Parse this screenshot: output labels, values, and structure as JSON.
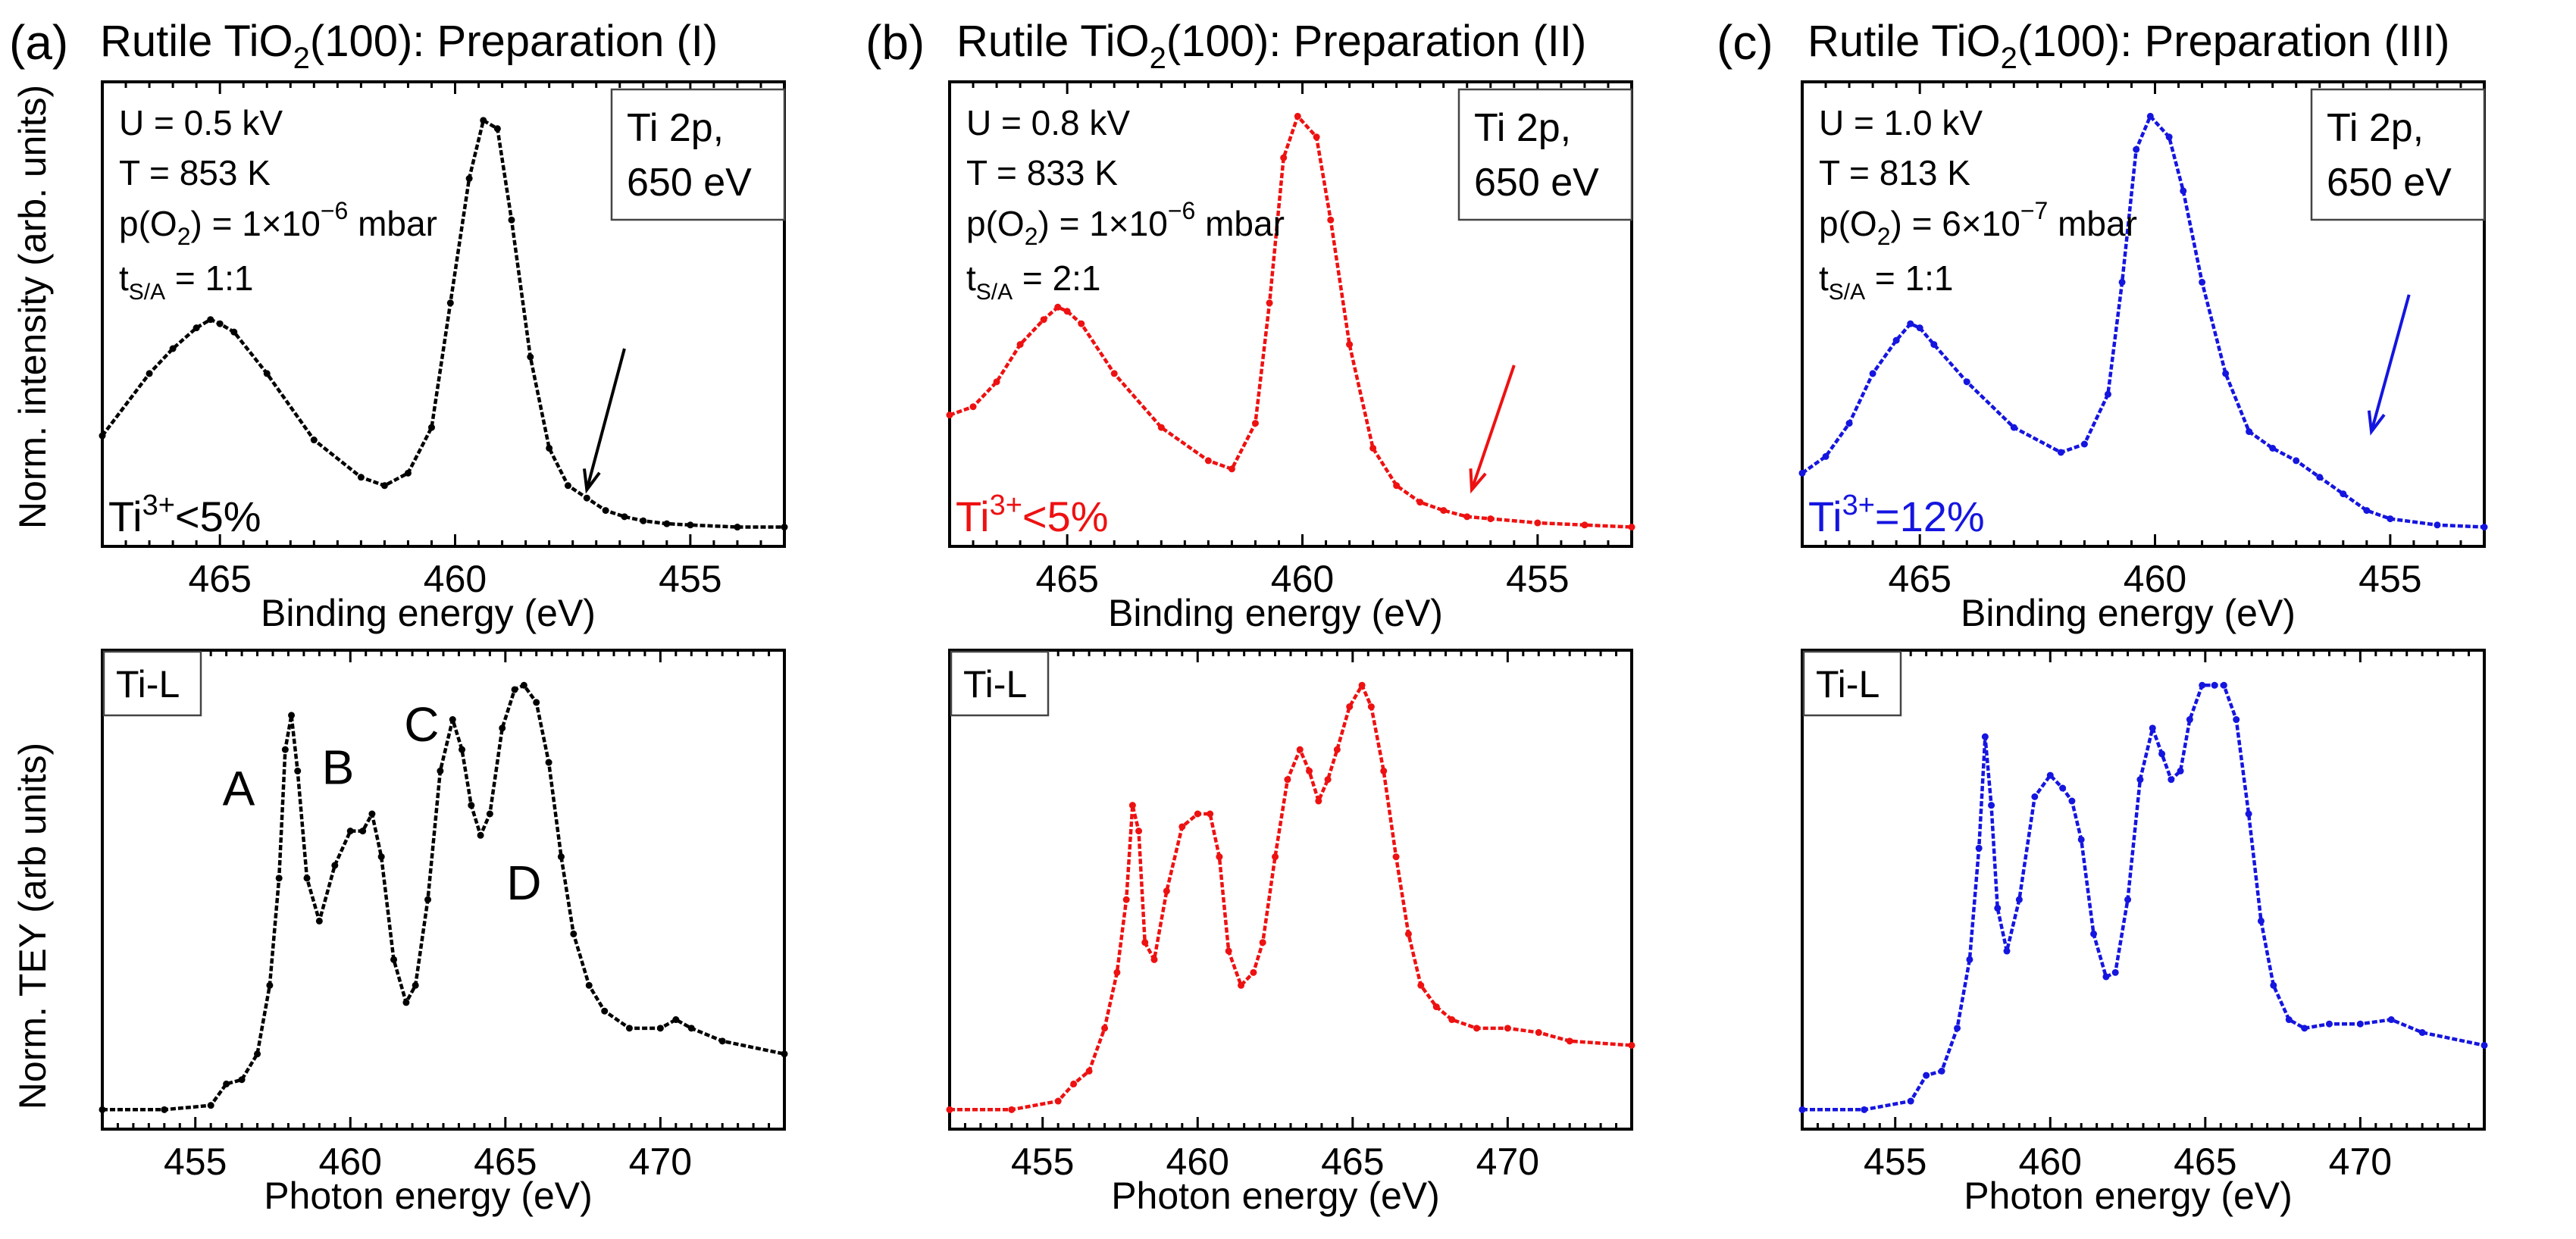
{
  "figure": {
    "panels": [
      {
        "letter": "(a)",
        "title_pre": "Rutile TiO",
        "title_sub": "2",
        "title_post": "(100): Preparation (I)",
        "color": "#000000"
      },
      {
        "letter": "(b)",
        "title_pre": "Rutile TiO",
        "title_sub": "2",
        "title_post": "(100): Preparation (II)",
        "color": "#ee1111"
      },
      {
        "letter": "(c)",
        "title_pre": "Rutile TiO",
        "title_sub": "2",
        "title_post": "(100): Preparation (III)",
        "color": "#1515e0"
      }
    ],
    "ylabel_top": "Norm. intensity (arb. units)",
    "ylabel_bottom": "Norm. TEY (arb units)"
  },
  "chart_data": [
    {
      "type": "line",
      "panel": "a",
      "row": "xps",
      "xlabel": "Binding energy (eV)",
      "xlim": [
        467.5,
        453
      ],
      "x_reversed": true,
      "xticks": [
        465,
        460,
        455
      ],
      "ylim": [
        0,
        1.05
      ],
      "inset_label": [
        "Ti 2p,",
        "650 eV"
      ],
      "params": {
        "U": "U = 0.5 kV",
        "T": "T = 853 K",
        "p_pre": "p(O",
        "p_sub": "2",
        "p_mid": ") = 1×10",
        "p_exp": "−6",
        "p_unit": " mbar",
        "t_pre": "t",
        "t_sub": "S/A",
        "t_post": " = 1:1"
      },
      "ti3_pre": "Ti",
      "ti3_sup": "3+",
      "ti3_post": "<5%",
      "arrow": {
        "from": [
          456.4,
          0.44
        ],
        "to": [
          457.2,
          0.1
        ]
      },
      "x": [
        467.5,
        466.5,
        466,
        465.5,
        465.2,
        465,
        464.7,
        464,
        463,
        462,
        461.5,
        461,
        460.5,
        460.1,
        459.7,
        459.4,
        459.1,
        458.8,
        458.4,
        458,
        457.6,
        457.2,
        456.8,
        456.4,
        456,
        455.5,
        455,
        454,
        453
      ],
      "y": [
        0.23,
        0.38,
        0.44,
        0.49,
        0.51,
        0.5,
        0.48,
        0.38,
        0.22,
        0.13,
        0.11,
        0.14,
        0.25,
        0.55,
        0.85,
        0.99,
        0.97,
        0.75,
        0.42,
        0.2,
        0.11,
        0.08,
        0.05,
        0.035,
        0.025,
        0.018,
        0.015,
        0.01,
        0.01
      ]
    },
    {
      "type": "line",
      "panel": "b",
      "row": "xps",
      "xlabel": "Binding energy (eV)",
      "xlim": [
        467.5,
        453
      ],
      "x_reversed": true,
      "xticks": [
        465,
        460,
        455
      ],
      "ylim": [
        0,
        1.05
      ],
      "inset_label": [
        "Ti 2p,",
        "650 eV"
      ],
      "params": {
        "U": "U = 0.8 kV",
        "T": "T = 833 K",
        "p_pre": "p(O",
        "p_sub": "2",
        "p_mid": ") = 1×10",
        "p_exp": "−6",
        "p_unit": " mbar",
        "t_pre": "t",
        "t_sub": "S/A",
        "t_post": " = 2:1"
      },
      "ti3_pre": "Ti",
      "ti3_sup": "3+",
      "ti3_post": "<5%",
      "arrow": {
        "from": [
          455.5,
          0.4
        ],
        "to": [
          456.4,
          0.1
        ]
      },
      "x": [
        467.5,
        467,
        466.5,
        466,
        465.5,
        465.2,
        465,
        464.7,
        464,
        463,
        462,
        461.5,
        461,
        460.7,
        460.4,
        460.1,
        459.7,
        459.4,
        459,
        458.5,
        458,
        457.5,
        457,
        456.5,
        456,
        455,
        454,
        453
      ],
      "y": [
        0.28,
        0.3,
        0.36,
        0.45,
        0.51,
        0.54,
        0.53,
        0.5,
        0.38,
        0.25,
        0.17,
        0.15,
        0.26,
        0.55,
        0.9,
        1.0,
        0.95,
        0.75,
        0.45,
        0.2,
        0.11,
        0.07,
        0.05,
        0.035,
        0.03,
        0.02,
        0.015,
        0.01
      ]
    },
    {
      "type": "line",
      "panel": "c",
      "row": "xps",
      "xlabel": "Binding energy (eV)",
      "xlim": [
        467.5,
        453
      ],
      "x_reversed": true,
      "xticks": [
        465,
        460,
        455
      ],
      "ylim": [
        0,
        1.05
      ],
      "inset_label": [
        "Ti 2p,",
        "650 eV"
      ],
      "params": {
        "U": "U = 1.0 kV",
        "T": "T = 813 K",
        "p_pre": "p(O",
        "p_sub": "2",
        "p_mid": ") = 6×10",
        "p_exp": "−7",
        "p_unit": " mbar",
        "t_pre": "t",
        "t_sub": "S/A",
        "t_post": " = 1:1"
      },
      "ti3_pre": "Ti",
      "ti3_sup": "3+",
      "ti3_post": "=12%",
      "arrow": {
        "from": [
          454.6,
          0.57
        ],
        "to": [
          455.4,
          0.24
        ]
      },
      "x": [
        467.5,
        467,
        466.5,
        466,
        465.5,
        465.2,
        465,
        464.7,
        464,
        463,
        462,
        461.5,
        461,
        460.7,
        460.4,
        460.1,
        459.7,
        459.4,
        459,
        458.5,
        458,
        457.5,
        457,
        456.5,
        456,
        455.5,
        455,
        454,
        453
      ],
      "y": [
        0.14,
        0.18,
        0.26,
        0.38,
        0.46,
        0.5,
        0.49,
        0.45,
        0.36,
        0.25,
        0.19,
        0.21,
        0.33,
        0.6,
        0.92,
        1.0,
        0.95,
        0.82,
        0.6,
        0.38,
        0.24,
        0.2,
        0.17,
        0.13,
        0.09,
        0.05,
        0.03,
        0.015,
        0.01
      ]
    },
    {
      "type": "line",
      "panel": "a",
      "row": "tey",
      "xlabel": "Photon energy (eV)",
      "xlim": [
        452,
        474
      ],
      "xticks": [
        455,
        460,
        465,
        470
      ],
      "ylim": [
        0,
        1.05
      ],
      "inset_label": [
        "Ti-L"
      ],
      "peak_labels": [
        {
          "text": "A",
          "x": 456.4,
          "y": 0.72
        },
        {
          "text": "B",
          "x": 459.6,
          "y": 0.77
        },
        {
          "text": "C",
          "x": 462.3,
          "y": 0.87
        },
        {
          "text": "D",
          "x": 465.6,
          "y": 0.5
        }
      ],
      "x": [
        452,
        454,
        455.5,
        456,
        456.5,
        457,
        457.4,
        457.7,
        457.9,
        458.1,
        458.3,
        458.6,
        459,
        459.5,
        460,
        460.4,
        460.7,
        461,
        461.4,
        461.8,
        462.1,
        462.5,
        462.9,
        463.3,
        463.6,
        463.9,
        464.2,
        464.5,
        464.9,
        465.3,
        465.6,
        466,
        466.4,
        466.8,
        467.2,
        467.7,
        468.2,
        469,
        470,
        470.5,
        471,
        472,
        474
      ],
      "y": [
        0.01,
        0.01,
        0.02,
        0.07,
        0.08,
        0.14,
        0.3,
        0.55,
        0.85,
        0.93,
        0.8,
        0.55,
        0.45,
        0.58,
        0.66,
        0.66,
        0.7,
        0.6,
        0.36,
        0.26,
        0.3,
        0.5,
        0.8,
        0.92,
        0.85,
        0.72,
        0.65,
        0.7,
        0.9,
        0.99,
        1.0,
        0.96,
        0.82,
        0.6,
        0.42,
        0.3,
        0.24,
        0.2,
        0.2,
        0.22,
        0.2,
        0.17,
        0.14
      ]
    },
    {
      "type": "line",
      "panel": "b",
      "row": "tey",
      "xlabel": "Photon energy (eV)",
      "xlim": [
        452,
        474
      ],
      "xticks": [
        455,
        460,
        465,
        470
      ],
      "ylim": [
        0,
        1.05
      ],
      "inset_label": [
        "Ti-L"
      ],
      "x": [
        452,
        454,
        455.5,
        456,
        456.5,
        457,
        457.4,
        457.7,
        457.9,
        458.1,
        458.3,
        458.6,
        459,
        459.5,
        460,
        460.4,
        460.7,
        461,
        461.4,
        461.8,
        462.1,
        462.5,
        462.9,
        463.3,
        463.6,
        463.9,
        464.2,
        464.5,
        464.9,
        465.3,
        465.6,
        466,
        466.4,
        466.8,
        467.2,
        467.7,
        468.2,
        469,
        470,
        471,
        472,
        474
      ],
      "y": [
        0.01,
        0.01,
        0.03,
        0.07,
        0.1,
        0.2,
        0.33,
        0.5,
        0.72,
        0.66,
        0.4,
        0.36,
        0.52,
        0.67,
        0.7,
        0.7,
        0.6,
        0.38,
        0.3,
        0.33,
        0.4,
        0.6,
        0.78,
        0.85,
        0.8,
        0.73,
        0.78,
        0.85,
        0.95,
        1.0,
        0.95,
        0.8,
        0.6,
        0.42,
        0.3,
        0.25,
        0.22,
        0.2,
        0.2,
        0.19,
        0.17,
        0.16
      ]
    },
    {
      "type": "line",
      "panel": "c",
      "row": "tey",
      "xlabel": "Photon energy (eV)",
      "xlim": [
        452,
        474
      ],
      "xticks": [
        455,
        460,
        465,
        470
      ],
      "ylim": [
        0,
        1.05
      ],
      "inset_label": [
        "Ti-L"
      ],
      "x": [
        452,
        454,
        455.5,
        456,
        456.5,
        457,
        457.4,
        457.7,
        457.9,
        458.1,
        458.3,
        458.6,
        459,
        459.5,
        460,
        460.4,
        460.7,
        461,
        461.4,
        461.8,
        462.1,
        462.5,
        462.9,
        463.3,
        463.6,
        463.9,
        464.2,
        464.5,
        464.9,
        465.3,
        465.6,
        466,
        466.4,
        466.8,
        467.2,
        467.7,
        468.2,
        469,
        470,
        471,
        472,
        474
      ],
      "y": [
        0.01,
        0.01,
        0.03,
        0.09,
        0.1,
        0.2,
        0.36,
        0.62,
        0.88,
        0.72,
        0.48,
        0.38,
        0.5,
        0.74,
        0.79,
        0.76,
        0.73,
        0.64,
        0.42,
        0.32,
        0.33,
        0.5,
        0.78,
        0.9,
        0.84,
        0.78,
        0.8,
        0.92,
        1.0,
        1.0,
        1.0,
        0.92,
        0.7,
        0.45,
        0.3,
        0.22,
        0.2,
        0.21,
        0.21,
        0.22,
        0.19,
        0.16
      ]
    }
  ]
}
